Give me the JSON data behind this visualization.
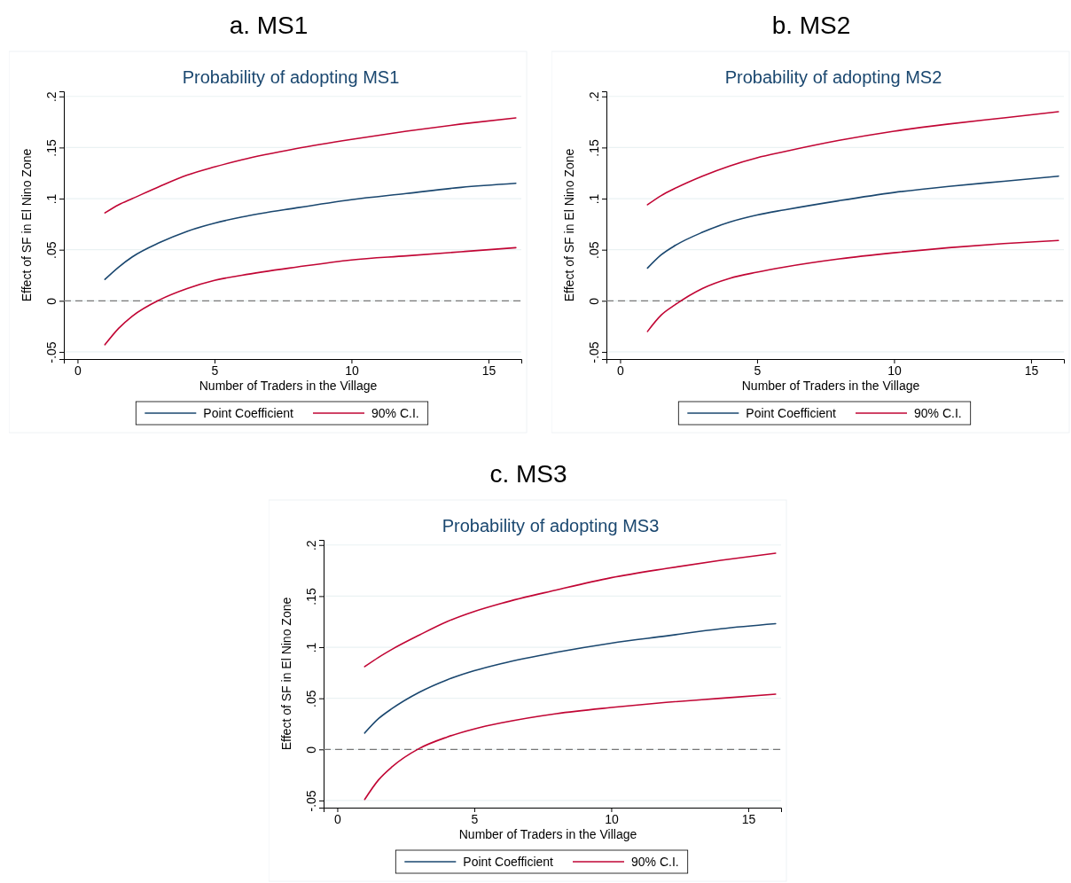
{
  "chart_data": [
    {
      "type": "line",
      "title": "a. MS1",
      "subtitle": "Probability of adopting MS1",
      "xlabel": "Number of Traders in the Village",
      "ylabel": "Effect of SF in El Nino Zone",
      "x": [
        1,
        1.5,
        2,
        3,
        4,
        5,
        6,
        8,
        10,
        12,
        14,
        16
      ],
      "series": [
        {
          "name": "Point Coefficient",
          "color": "#1a476f",
          "values": [
            0.021,
            0.033,
            0.043,
            0.057,
            0.068,
            0.076,
            0.082,
            0.091,
            0.099,
            0.105,
            0.111,
            0.115
          ]
        },
        {
          "name": "90% C.I.",
          "color": "#c10534",
          "values": [
            0.086,
            0.094,
            0.1,
            0.112,
            0.123,
            0.131,
            0.138,
            0.149,
            0.158,
            0.166,
            0.173,
            0.179
          ]
        },
        {
          "color": "#c10534",
          "values": [
            -0.043,
            -0.027,
            -0.015,
            0.001,
            0.012,
            0.02,
            0.025,
            0.033,
            0.04,
            0.044,
            0.048,
            0.052
          ]
        }
      ],
      "xlim": [
        -0.5,
        16.2
      ],
      "xticks": [
        0,
        5,
        10,
        15
      ],
      "ylim": [
        -0.057,
        0.205
      ],
      "yticks": [
        {
          "value": -0.05,
          "label": "-.05"
        },
        {
          "value": 0,
          "label": "0"
        },
        {
          "value": 0.05,
          "label": ".05"
        },
        {
          "value": 0.1,
          "label": ".1"
        },
        {
          "value": 0.15,
          "label": ".15"
        },
        {
          "value": 0.2,
          "label": ".2"
        }
      ],
      "ref_lines": [
        {
          "axis": "y",
          "value": 0,
          "color": "#777777",
          "line_style": "dashed"
        }
      ],
      "grid": "y",
      "legend": "bottom",
      "line_style": "solid",
      "marker": "none"
    },
    {
      "type": "line",
      "title": "b. MS2",
      "subtitle": "Probability of adopting MS2",
      "xlabel": "Number of Traders in the Village",
      "ylabel": "Effect of SF in El Nino Zone",
      "x": [
        1,
        1.5,
        2,
        3,
        4,
        5,
        6,
        8,
        10,
        12,
        14,
        16
      ],
      "series": [
        {
          "name": "Point Coefficient",
          "color": "#1a476f",
          "values": [
            0.032,
            0.045,
            0.054,
            0.067,
            0.077,
            0.084,
            0.089,
            0.098,
            0.106,
            0.112,
            0.117,
            0.122
          ]
        },
        {
          "name": "90% C.I.",
          "color": "#c10534",
          "values": [
            0.094,
            0.103,
            0.11,
            0.122,
            0.132,
            0.14,
            0.146,
            0.157,
            0.166,
            0.173,
            0.179,
            0.185
          ]
        },
        {
          "color": "#c10534",
          "values": [
            -0.03,
            -0.014,
            -0.004,
            0.012,
            0.022,
            0.028,
            0.033,
            0.041,
            0.047,
            0.052,
            0.056,
            0.059
          ]
        }
      ],
      "xlim": [
        -0.5,
        16.2
      ],
      "xticks": [
        0,
        5,
        10,
        15
      ],
      "ylim": [
        -0.057,
        0.205
      ],
      "yticks": [
        {
          "value": -0.05,
          "label": "-.05"
        },
        {
          "value": 0,
          "label": "0"
        },
        {
          "value": 0.05,
          "label": ".05"
        },
        {
          "value": 0.1,
          "label": ".1"
        },
        {
          "value": 0.15,
          "label": ".15"
        },
        {
          "value": 0.2,
          "label": ".2"
        }
      ],
      "ref_lines": [
        {
          "axis": "y",
          "value": 0,
          "color": "#777777",
          "line_style": "dashed"
        }
      ],
      "grid": "y",
      "legend": "bottom",
      "line_style": "solid",
      "marker": "none"
    },
    {
      "type": "line",
      "title": "c. MS3",
      "subtitle": "Probability of adopting MS3",
      "xlabel": "Number of Traders in the Village",
      "ylabel": "Effect of SF in El Nino Zone",
      "x": [
        1,
        1.5,
        2,
        3,
        4,
        5,
        6,
        8,
        10,
        12,
        14,
        16
      ],
      "series": [
        {
          "name": "Point Coefficient",
          "color": "#1a476f",
          "values": [
            0.016,
            0.03,
            0.04,
            0.056,
            0.068,
            0.077,
            0.084,
            0.095,
            0.104,
            0.111,
            0.118,
            0.123
          ]
        },
        {
          "name": "90% C.I.",
          "color": "#c10534",
          "values": [
            0.081,
            0.09,
            0.098,
            0.112,
            0.125,
            0.135,
            0.143,
            0.156,
            0.168,
            0.177,
            0.185,
            0.192
          ]
        },
        {
          "color": "#c10534",
          "values": [
            -0.049,
            -0.03,
            -0.017,
            0.001,
            0.012,
            0.02,
            0.026,
            0.035,
            0.041,
            0.046,
            0.05,
            0.054
          ]
        }
      ],
      "xlim": [
        -0.5,
        16.2
      ],
      "xticks": [
        0,
        5,
        10,
        15
      ],
      "ylim": [
        -0.057,
        0.205
      ],
      "yticks": [
        {
          "value": -0.05,
          "label": "-.05"
        },
        {
          "value": 0,
          "label": "0"
        },
        {
          "value": 0.05,
          "label": ".05"
        },
        {
          "value": 0.1,
          "label": ".1"
        },
        {
          "value": 0.15,
          "label": ".15"
        },
        {
          "value": 0.2,
          "label": ".2"
        }
      ],
      "ref_lines": [
        {
          "axis": "y",
          "value": 0,
          "color": "#777777",
          "line_style": "dashed"
        }
      ],
      "grid": "y",
      "legend": "bottom",
      "line_style": "solid",
      "marker": "none"
    }
  ]
}
